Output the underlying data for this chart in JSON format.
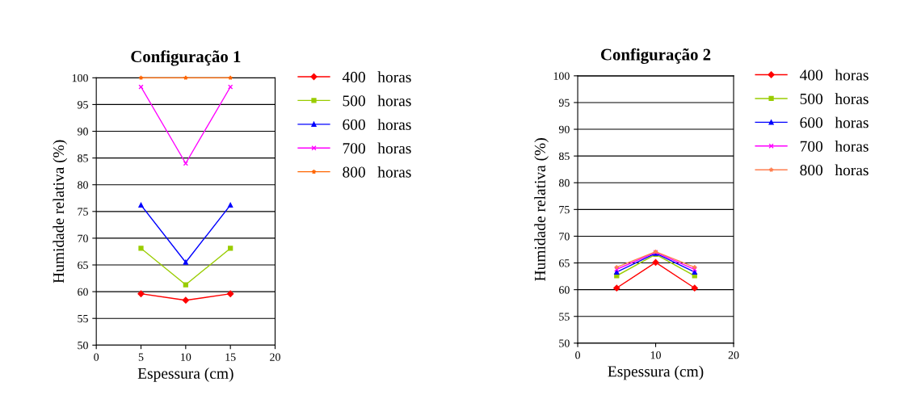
{
  "chart_data": [
    {
      "type": "line",
      "title": "Configuração 1",
      "xlabel": "Espessura (cm)",
      "ylabel": "Humidade relativa (%)",
      "x": [
        5,
        10,
        15
      ],
      "xlim": [
        0,
        20
      ],
      "xticks": [
        0,
        5,
        10,
        15,
        20
      ],
      "ylim": [
        50,
        100
      ],
      "yticks": [
        50,
        55,
        60,
        65,
        70,
        75,
        80,
        85,
        90,
        95,
        100
      ],
      "grid": "y",
      "legend": "right",
      "series": [
        {
          "name": "400   horas",
          "color": "#ff0000",
          "marker": "diamond",
          "values": [
            59.6,
            58.4,
            59.6
          ]
        },
        {
          "name": "500   horas",
          "color": "#99cc00",
          "marker": "square",
          "values": [
            68.1,
            61.3,
            68.1
          ]
        },
        {
          "name": "600   horas",
          "color": "#0000ff",
          "marker": "triangle",
          "values": [
            76.2,
            65.5,
            76.2
          ]
        },
        {
          "name": "700   horas",
          "color": "#ff00ff",
          "marker": "cross",
          "values": [
            98.3,
            84,
            98.3
          ]
        },
        {
          "name": "800   horas",
          "color": "#ff6600",
          "marker": "star",
          "values": [
            100,
            100,
            100
          ]
        }
      ]
    },
    {
      "type": "line",
      "title": "Configuração 2",
      "xlabel": "Espessura (cm)",
      "ylabel": "Humidade relativa (%)",
      "x": [
        5,
        10,
        15
      ],
      "xlim": [
        0,
        20
      ],
      "xticks": [
        0,
        10,
        20
      ],
      "ylim": [
        50,
        100
      ],
      "yticks": [
        50,
        55,
        60,
        65,
        70,
        75,
        80,
        85,
        90,
        95,
        100
      ],
      "grid": "y",
      "legend": "right",
      "series": [
        {
          "name": "400   horas",
          "color": "#ff0000",
          "marker": "diamond",
          "values": [
            60.3,
            65.1,
            60.3
          ]
        },
        {
          "name": "500   horas",
          "color": "#99cc00",
          "marker": "square",
          "values": [
            62.6,
            66.6,
            62.6
          ]
        },
        {
          "name": "600   horas",
          "color": "#0000ff",
          "marker": "triangle",
          "values": [
            63.3,
            66.8,
            63.3
          ]
        },
        {
          "name": "700   horas",
          "color": "#ff00ff",
          "marker": "cross",
          "values": [
            63.8,
            67.0,
            63.8
          ]
        },
        {
          "name": "800   horas",
          "color": "#ff7f50",
          "marker": "star",
          "values": [
            64.2,
            67.1,
            64.2
          ]
        }
      ]
    }
  ]
}
